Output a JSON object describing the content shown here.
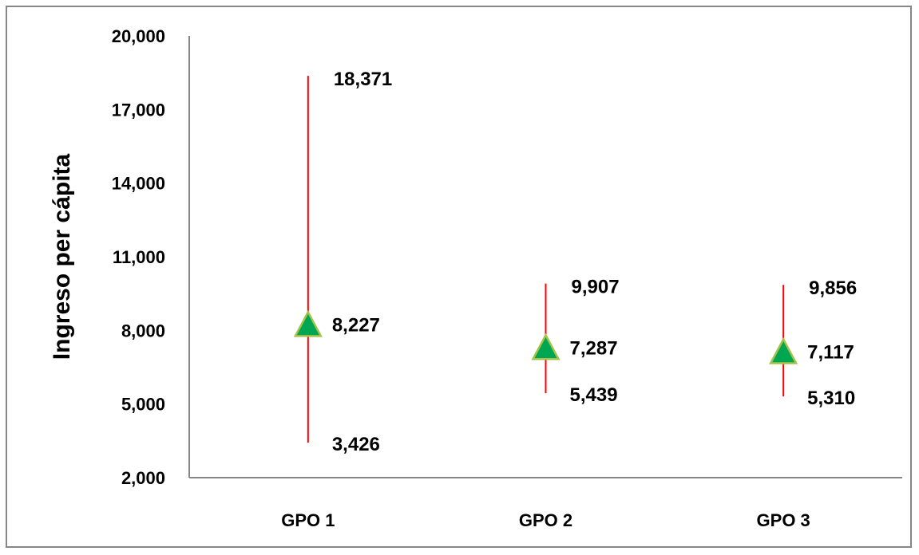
{
  "chart_data": {
    "type": "scatter",
    "subtype": "high-low-mean",
    "title": "",
    "xlabel": "",
    "ylabel": "Ingreso per cápita",
    "ylim": [
      2000,
      20000
    ],
    "yticks": [
      2000,
      5000,
      8000,
      11000,
      14000,
      17000,
      20000
    ],
    "ytick_labels": [
      "2,000",
      "5,000",
      "8,000",
      "11,000",
      "14,000",
      "17,000",
      "20,000"
    ],
    "grid": false,
    "legend": "none",
    "categories": [
      "GPO 1",
      "GPO 2",
      "GPO 3"
    ],
    "high": [
      18371,
      9907,
      9856
    ],
    "low": [
      3426,
      5439,
      5310
    ],
    "mean": [
      8227,
      7287,
      7117
    ],
    "labels": {
      "high": [
        "18,371",
        "9,907",
        "9,856"
      ],
      "low": [
        "3,426",
        "5,439",
        "5,310"
      ],
      "mean": [
        "8,227",
        "7,287",
        "7,117"
      ]
    },
    "colors": {
      "range_line": "#ff0000",
      "marker_fill": "#00a651",
      "marker_stroke": "#a5c24a",
      "axis": "#868686"
    }
  }
}
